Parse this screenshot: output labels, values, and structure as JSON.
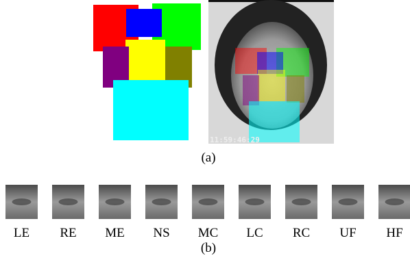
{
  "figure_a": {
    "caption": "(a)",
    "timestamp": "11:59:46:29"
  },
  "figure_b": {
    "caption": "(b)",
    "labels": [
      "LE",
      "RE",
      "ME",
      "NS",
      "MC",
      "LC",
      "RC",
      "UF",
      "HF"
    ]
  }
}
